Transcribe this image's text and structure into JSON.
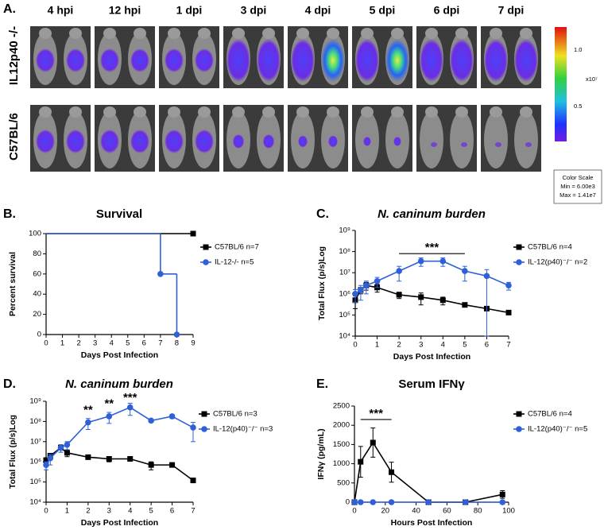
{
  "figure_a": {
    "panel_label": "A.",
    "timepoints": [
      "4 hpi",
      "12 hpi",
      "1 dpi",
      "3 dpi",
      "4 dpi",
      "5 dpi",
      "6 dpi",
      "7 dpi"
    ],
    "rows": [
      "IL12p40 -/-",
      "C57BL/6"
    ],
    "colorbar_ticks": [
      "1.0",
      "0.5"
    ],
    "colorbar_unit": "x10⁷",
    "color_scale": {
      "title": "Color Scale",
      "min": "Min = 6.00e3",
      "max": "Max = 1.41e7"
    }
  },
  "chart_data": [
    {
      "panel_label": "B.",
      "type": "line",
      "step": true,
      "title": "Survival",
      "x_label": "Days Post Infection",
      "y_label": "Percent survival",
      "xlim": [
        0,
        9
      ],
      "xticks": [
        0,
        1,
        2,
        3,
        4,
        5,
        6,
        7,
        8,
        9
      ],
      "ylim": [
        0,
        100
      ],
      "yticks": [
        0,
        20,
        40,
        60,
        80,
        100
      ],
      "legend": "right",
      "series": [
        {
          "name": "C57BL/6 n=7",
          "color": "#000000",
          "marker": "square",
          "x": [
            0,
            9
          ],
          "values": [
            100,
            100
          ]
        },
        {
          "name": "IL-12-/- n=5",
          "color": "#3060d8",
          "marker": "circle",
          "x": [
            0,
            7,
            8
          ],
          "values": [
            100,
            60,
            0
          ]
        }
      ]
    },
    {
      "panel_label": "C.",
      "type": "line",
      "title": "N. caninum burden",
      "x_label": "Days Post Infection",
      "y_label": "Total Flux (p/s)Log",
      "xlim": [
        0,
        7
      ],
      "xticks": [
        0,
        1,
        2,
        3,
        4,
        5,
        6,
        7
      ],
      "log_y": true,
      "ylim": [
        10000,
        1000000000
      ],
      "yticks": [
        {
          "value": 10000,
          "label": "10⁴"
        },
        {
          "value": 100000,
          "label": "10⁵"
        },
        {
          "value": 1000000,
          "label": "10⁶"
        },
        {
          "value": 10000000,
          "label": "10⁷"
        },
        {
          "value": 100000000,
          "label": "10⁸"
        },
        {
          "value": 1000000000,
          "label": "10⁹"
        }
      ],
      "legend": "right",
      "series": [
        {
          "name": "C57BL/6 n=4",
          "color": "#000000",
          "marker": "square",
          "x": [
            0,
            0.25,
            0.5,
            1,
            2,
            3,
            4,
            5,
            6,
            7
          ],
          "values": [
            500000,
            1500000,
            2500000,
            2000000,
            900000,
            700000,
            500000,
            300000,
            200000,
            130000
          ],
          "errors": [
            300000,
            500000,
            1000000,
            800000,
            300000,
            400000,
            200000,
            50000,
            30000,
            20000
          ]
        },
        {
          "name": "IL-12(p40)⁻/⁻ n=2",
          "color": "#3060d8",
          "marker": "circle",
          "x": [
            0,
            0.25,
            0.5,
            1,
            2,
            3,
            4,
            5,
            6,
            7
          ],
          "values": [
            1000000,
            1500000,
            2500000,
            4000000,
            12000000,
            35000000,
            35000000,
            12000000,
            7000000,
            2500000
          ],
          "errors": [
            600000,
            1000000,
            1500000,
            2000000,
            8000000,
            15000000,
            15000000,
            8000000,
            7000000,
            1000000
          ]
        }
      ],
      "annotations": [
        {
          "text": "***",
          "x": [
            2,
            5
          ],
          "y": 80000000
        }
      ]
    },
    {
      "panel_label": "D.",
      "type": "line",
      "title": "N. caninum burden",
      "x_label": "Days Post Infection",
      "y_label": "Total Flux (p/s)Log",
      "xlim": [
        0,
        7
      ],
      "xticks": [
        0,
        1,
        2,
        3,
        4,
        5,
        6,
        7
      ],
      "log_y": true,
      "ylim": [
        10000,
        1000000000
      ],
      "yticks": [
        {
          "value": 10000,
          "label": "10⁴"
        },
        {
          "value": 100000,
          "label": "10⁵"
        },
        {
          "value": 1000000,
          "label": "10⁶"
        },
        {
          "value": 10000000,
          "label": "10⁷"
        },
        {
          "value": 100000000,
          "label": "10⁸"
        },
        {
          "value": 1000000000,
          "label": "10⁹"
        }
      ],
      "legend": "right",
      "series": [
        {
          "name": "C57BL/6 n=3",
          "color": "#000000",
          "marker": "square",
          "x": [
            0,
            0.2,
            0.7,
            1,
            2,
            3,
            4,
            5,
            6,
            7
          ],
          "values": [
            1200000,
            2000000,
            5000000,
            2800000,
            1700000,
            1400000,
            1400000,
            700000,
            700000,
            120000
          ],
          "errors": [
            400000,
            600000,
            2000000,
            1000000,
            300000,
            400000,
            300000,
            300000,
            100000,
            20000
          ]
        },
        {
          "name": "IL-12(p40)⁻/⁻ n=3",
          "color": "#3060d8",
          "marker": "circle",
          "x": [
            0,
            0.2,
            0.7,
            1,
            2,
            3,
            4,
            5,
            6,
            7
          ],
          "values": [
            700000,
            1500000,
            5000000,
            7000000,
            90000000,
            180000000,
            500000000,
            110000000,
            180000000,
            50000000
          ],
          "errors": [
            300000,
            800000,
            2000000,
            3000000,
            50000000,
            100000000,
            300000000,
            20000000,
            40000000,
            40000000
          ]
        }
      ],
      "annotations": [
        {
          "text": "**",
          "x": 2,
          "y": 250000000
        },
        {
          "text": "**",
          "x": 3,
          "y": 500000000
        },
        {
          "text": "***",
          "x": 4,
          "y": 1000000000
        }
      ]
    },
    {
      "panel_label": "E.",
      "type": "line",
      "title": "Serum IFNγ",
      "x_label": "Hours Post Infection",
      "y_label": "IFNγ (pg/mL)",
      "xlim": [
        0,
        100
      ],
      "xticks": [
        0,
        20,
        40,
        60,
        80,
        100
      ],
      "ylim": [
        0,
        2500
      ],
      "yticks": [
        0,
        500,
        1000,
        1500,
        2000,
        2500
      ],
      "legend": "right",
      "series": [
        {
          "name": "C57BL/6 n=4",
          "color": "#000000",
          "marker": "square",
          "x": [
            0,
            4,
            12,
            24,
            48,
            72,
            96
          ],
          "values": [
            0,
            1050,
            1550,
            780,
            0,
            0,
            200
          ],
          "errors": [
            0,
            400,
            380,
            260,
            0,
            0,
            100
          ]
        },
        {
          "name": "IL-12(p40)⁻/⁻ n=5",
          "color": "#3060d8",
          "marker": "circle",
          "x": [
            0,
            4,
            12,
            24,
            48,
            72,
            96
          ],
          "values": [
            0,
            0,
            0,
            0,
            0,
            0,
            0
          ]
        }
      ],
      "annotations": [
        {
          "text": "***",
          "x": [
            4,
            24
          ],
          "y": 2150
        }
      ]
    }
  ]
}
